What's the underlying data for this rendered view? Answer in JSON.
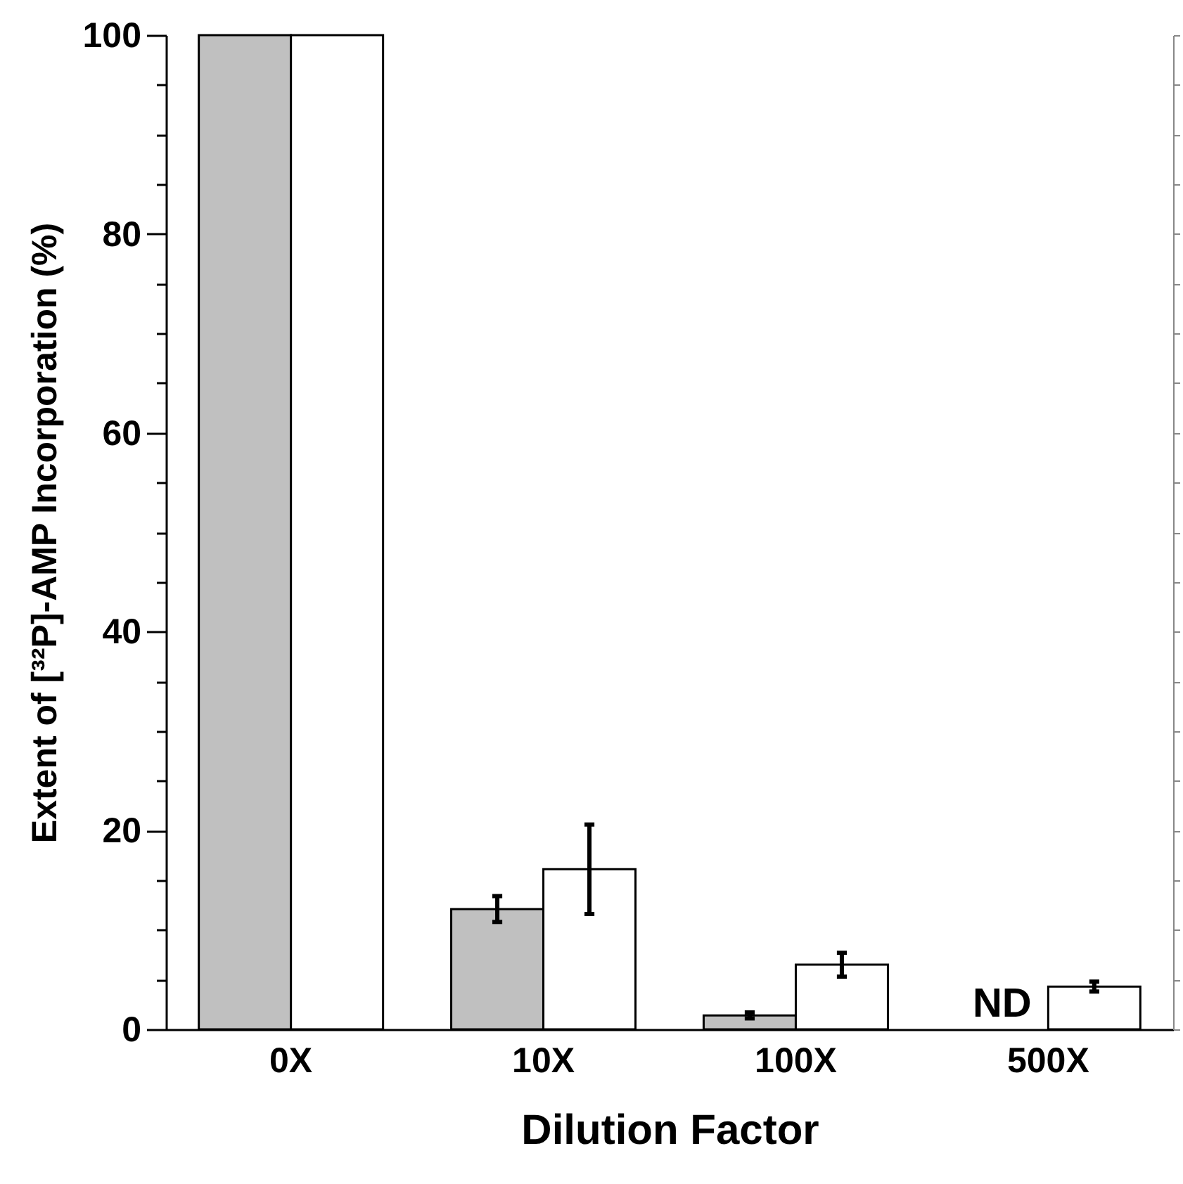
{
  "chart_data": {
    "type": "bar",
    "xlabel": "Dilution Factor",
    "ylabel": "Extent of [³²P]-AMP Incorporation (%)",
    "categories": [
      "0X",
      "10X",
      "100X",
      "500X"
    ],
    "series": [
      {
        "color": "#c0c0c0",
        "values": [
          100,
          12.1,
          1.4,
          null
        ],
        "errors": [
          null,
          1.3,
          0.3,
          null
        ]
      },
      {
        "color": "#ffffff",
        "values": [
          100,
          16.1,
          6.5,
          4.3
        ],
        "errors": [
          null,
          4.5,
          1.2,
          0.5
        ]
      }
    ],
    "ylim": [
      0,
      100
    ],
    "yticks": [
      0,
      {
        "value": 5,
        "label": null
      },
      {
        "value": 10,
        "label": null
      },
      {
        "value": 15,
        "label": null
      },
      20,
      {
        "value": 25,
        "label": null
      },
      {
        "value": 30,
        "label": null
      },
      {
        "value": 35,
        "label": null
      },
      40,
      {
        "value": 45,
        "label": null
      },
      {
        "value": 50,
        "label": null
      },
      {
        "value": 55,
        "label": null
      },
      60,
      {
        "value": 65,
        "label": null
      },
      {
        "value": 70,
        "label": null
      },
      {
        "value": 75,
        "label": null
      },
      80,
      {
        "value": 85,
        "label": null
      },
      {
        "value": 90,
        "label": null
      },
      {
        "value": 95,
        "label": null
      },
      100
    ],
    "annotations": [
      {
        "text": "ND",
        "x": "500X",
        "y": 0
      }
    ]
  }
}
